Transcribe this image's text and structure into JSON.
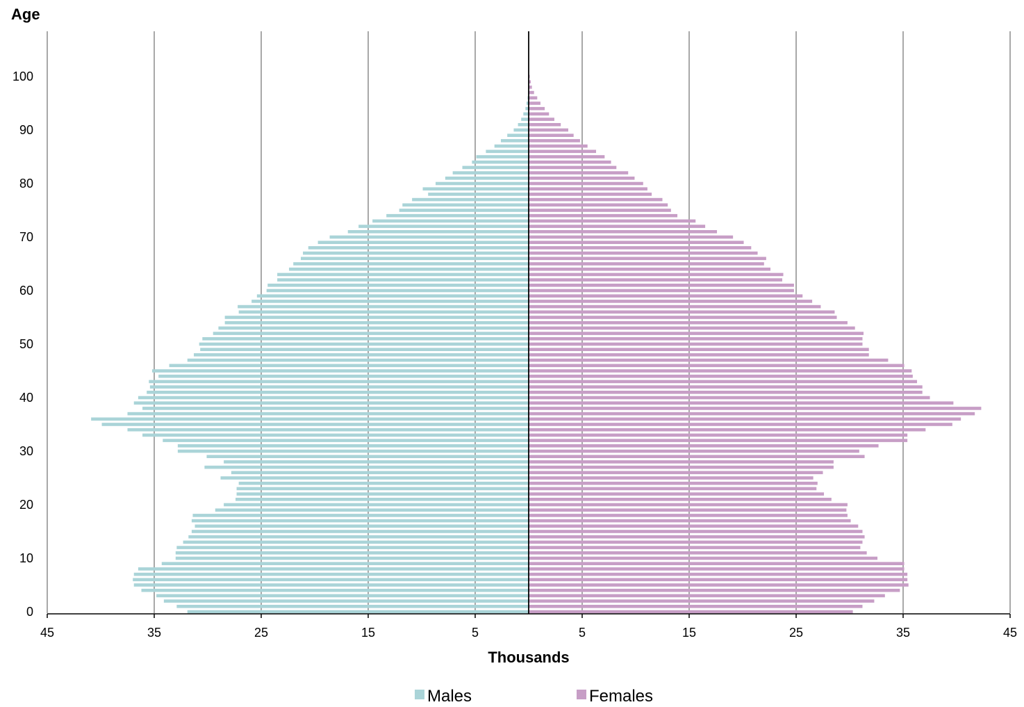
{
  "chart_data": {
    "type": "bar",
    "orientation": "horizontal",
    "layout": "population-pyramid",
    "title": "",
    "xlabel": "Thousands",
    "ylabel": "Age",
    "xlim": [
      -45,
      45
    ],
    "ylim": [
      0,
      100
    ],
    "x_ticks": [
      -45,
      -35,
      -25,
      -15,
      -5,
      5,
      15,
      25,
      35,
      45
    ],
    "x_tick_labels": [
      "45",
      "35",
      "25",
      "15",
      "5",
      "5",
      "15",
      "25",
      "35",
      "45"
    ],
    "y_ticks": [
      0,
      10,
      20,
      30,
      40,
      50,
      60,
      70,
      80,
      90,
      100
    ],
    "y_tick_labels": [
      "0",
      "10",
      "20",
      "30",
      "40",
      "50",
      "60",
      "70",
      "80",
      "90",
      "100"
    ],
    "grid": "vertical",
    "legend": "bottom-center",
    "categories": [
      0,
      1,
      2,
      3,
      4,
      5,
      6,
      7,
      8,
      9,
      10,
      11,
      12,
      13,
      14,
      15,
      16,
      17,
      18,
      19,
      20,
      21,
      22,
      23,
      24,
      25,
      26,
      27,
      28,
      29,
      30,
      31,
      32,
      33,
      34,
      35,
      36,
      37,
      38,
      39,
      40,
      41,
      42,
      43,
      44,
      45,
      46,
      47,
      48,
      49,
      50,
      51,
      52,
      53,
      54,
      55,
      56,
      57,
      58,
      59,
      60,
      61,
      62,
      63,
      64,
      65,
      66,
      67,
      68,
      69,
      70,
      71,
      72,
      73,
      74,
      75,
      76,
      77,
      78,
      79,
      80,
      81,
      82,
      83,
      84,
      85,
      86,
      87,
      88,
      89,
      90,
      91,
      92,
      93,
      94,
      95,
      96,
      97,
      98,
      99,
      100
    ],
    "series": [
      {
        "name": "Males",
        "color": "#aad4d8",
        "values": [
          31.9,
          32.9,
          34.1,
          34.8,
          36.2,
          36.9,
          37.0,
          36.9,
          36.5,
          34.3,
          33.0,
          33.0,
          32.9,
          32.3,
          31.8,
          31.5,
          31.2,
          31.5,
          31.4,
          29.3,
          28.5,
          27.4,
          27.3,
          27.3,
          27.1,
          28.8,
          27.8,
          30.3,
          28.5,
          30.1,
          32.8,
          32.8,
          34.2,
          36.1,
          37.5,
          39.9,
          40.9,
          37.5,
          36.1,
          36.9,
          36.5,
          35.7,
          35.4,
          35.5,
          34.6,
          35.2,
          33.6,
          31.9,
          31.3,
          30.7,
          30.8,
          30.5,
          29.5,
          29.0,
          28.4,
          28.4,
          27.1,
          27.2,
          25.9,
          25.4,
          24.5,
          24.4,
          23.5,
          23.5,
          22.4,
          22.0,
          21.3,
          21.1,
          20.6,
          19.7,
          18.6,
          16.9,
          15.9,
          14.6,
          13.3,
          12.1,
          11.8,
          10.9,
          9.4,
          9.9,
          8.7,
          7.8,
          7.1,
          6.2,
          5.3,
          4.9,
          4.0,
          3.2,
          2.6,
          2.0,
          1.4,
          1.0,
          0.7,
          0.5,
          0.3,
          0.2,
          0.1,
          0.05,
          0.03,
          0.02,
          0.01
        ]
      },
      {
        "name": "Females",
        "color": "#c79ec6",
        "values": [
          30.3,
          31.2,
          32.3,
          33.3,
          34.7,
          35.5,
          35.4,
          35.4,
          35.1,
          35.1,
          32.6,
          31.6,
          31.0,
          31.2,
          31.4,
          31.2,
          30.8,
          30.1,
          29.8,
          29.7,
          29.8,
          28.3,
          27.6,
          26.9,
          27.0,
          26.6,
          27.5,
          28.5,
          28.5,
          31.4,
          30.9,
          32.7,
          35.4,
          35.4,
          37.1,
          39.6,
          40.4,
          41.7,
          42.3,
          39.7,
          37.5,
          36.8,
          36.8,
          36.3,
          35.9,
          35.8,
          35.1,
          33.6,
          31.8,
          31.8,
          31.2,
          31.2,
          31.3,
          30.5,
          29.8,
          28.8,
          28.6,
          27.3,
          26.5,
          25.6,
          24.8,
          24.8,
          23.7,
          23.8,
          22.6,
          22.0,
          22.2,
          21.4,
          20.8,
          20.1,
          19.1,
          17.6,
          16.5,
          15.6,
          13.9,
          13.3,
          13.0,
          12.5,
          11.5,
          11.1,
          10.7,
          9.9,
          9.3,
          8.2,
          7.7,
          7.1,
          6.3,
          5.5,
          4.8,
          4.2,
          3.7,
          3.0,
          2.4,
          1.9,
          1.5,
          1.1,
          0.8,
          0.5,
          0.3,
          0.2,
          0.1
        ]
      }
    ]
  }
}
